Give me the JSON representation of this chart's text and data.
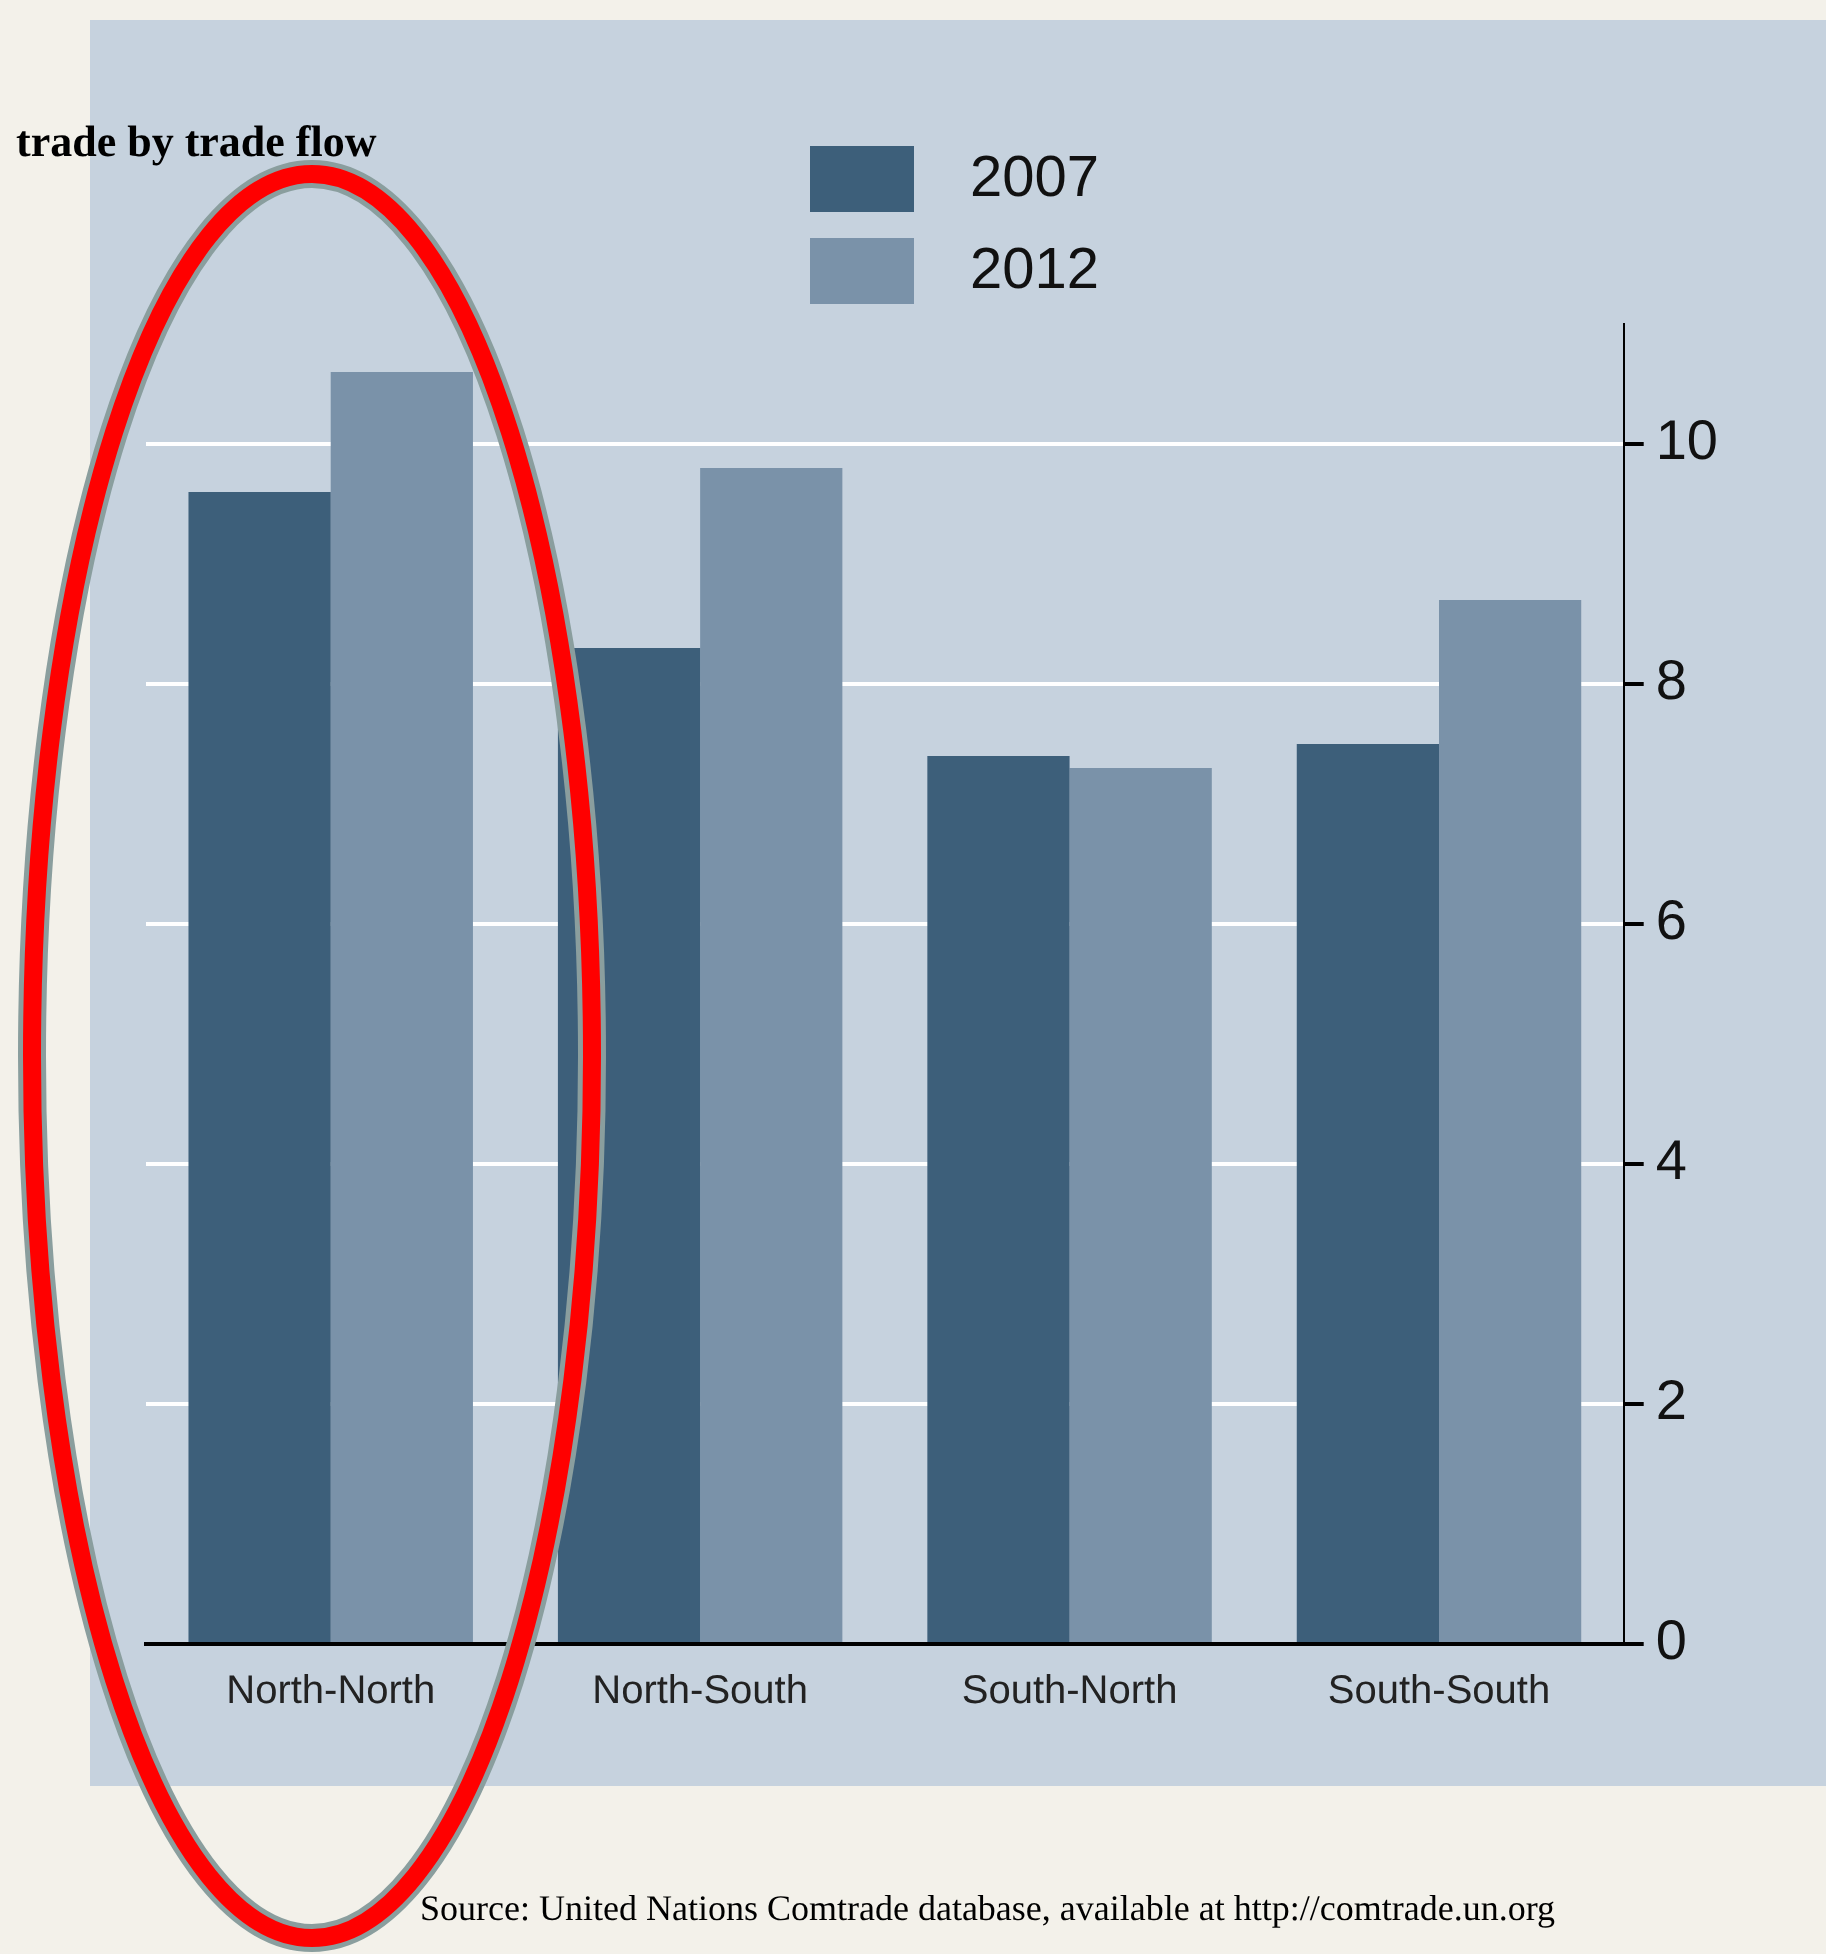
{
  "chart_data": {
    "type": "bar",
    "title": "trade by trade flow",
    "categories": [
      "North-North",
      "North-South",
      "South-North",
      "South-South"
    ],
    "series": [
      {
        "name": "2007",
        "color": "#3d5f7a",
        "values": [
          9.6,
          8.3,
          7.4,
          7.5
        ]
      },
      {
        "name": "2012",
        "color": "#7a92a9",
        "values": [
          10.6,
          9.8,
          7.3,
          8.7
        ]
      }
    ],
    "ylim": [
      0,
      11
    ],
    "yticks": [
      0,
      2,
      4,
      6,
      8,
      10
    ],
    "grid": "y",
    "legend": "top",
    "annotations": [
      "Source: United Nations Comtrade database, available at http://comtrade.un.org"
    ]
  }
}
